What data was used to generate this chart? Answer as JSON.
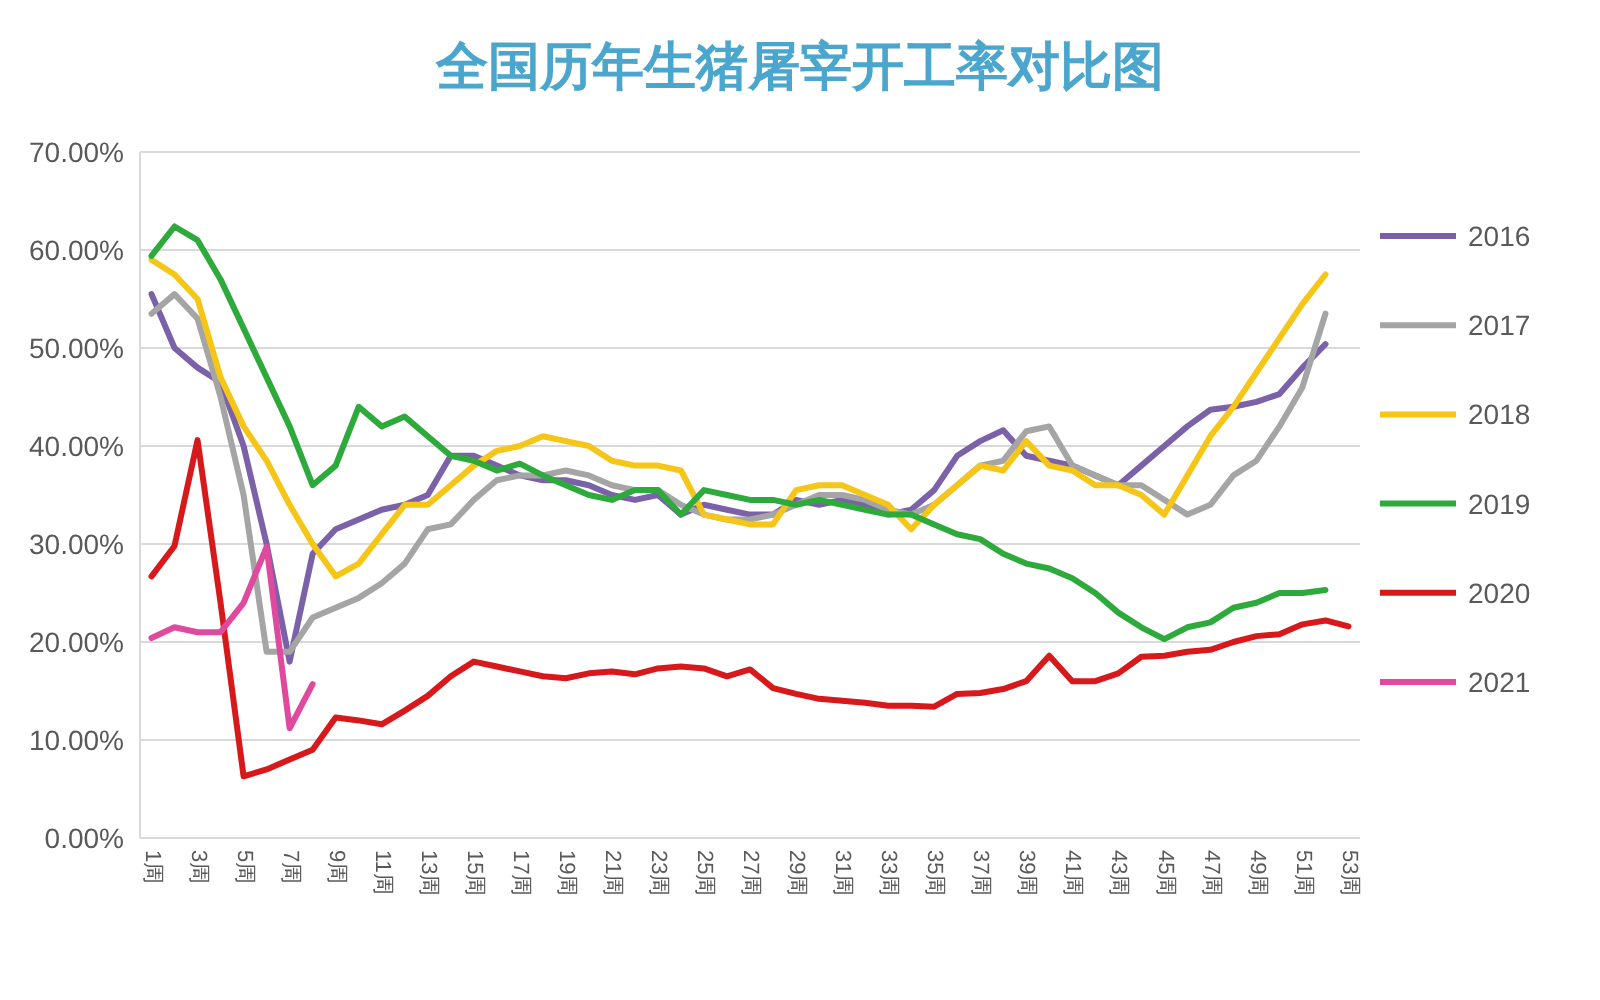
{
  "chart_data": {
    "type": "line",
    "title": "全国历年生猪屠宰开工率对比图",
    "categories": [
      "1周",
      null,
      "3周",
      null,
      "5周",
      null,
      "7周",
      null,
      "9周",
      null,
      "11周",
      null,
      "13周",
      null,
      "15周",
      null,
      "17周",
      null,
      "19周",
      null,
      "21周",
      null,
      "23周",
      null,
      "25周",
      null,
      "27周",
      null,
      "29周",
      null,
      "31周",
      null,
      "33周",
      null,
      "35周",
      null,
      "37周",
      null,
      "39周",
      null,
      "41周",
      null,
      "43周",
      null,
      "45周",
      null,
      "47周",
      null,
      "49周",
      null,
      "51周",
      null,
      "53周"
    ],
    "series": [
      {
        "name": "2016",
        "color": "#7b62a8",
        "values": [
          55.5,
          50,
          48,
          46.5,
          40,
          30,
          18,
          29,
          31.5,
          32.5,
          33.5,
          34,
          35,
          39,
          39,
          38,
          37,
          36.5,
          36.5,
          36,
          35,
          34.5,
          35,
          33,
          34,
          33.5,
          33,
          33,
          34.5,
          34,
          34.5,
          34,
          33,
          33.5,
          35.5,
          39,
          40.5,
          41.6,
          39,
          38.5,
          38,
          37,
          36,
          38,
          40,
          42,
          43.7,
          44,
          44.5,
          45.3,
          48,
          50.4,
          null
        ]
      },
      {
        "name": "2017",
        "color": "#a5a5a5",
        "values": [
          53.5,
          55.5,
          53,
          45,
          35,
          19,
          19,
          22.5,
          23.5,
          24.5,
          26,
          28,
          31.5,
          32,
          34.5,
          36.5,
          37,
          37,
          37.5,
          37,
          36,
          35.5,
          35.5,
          34,
          33,
          32.5,
          32.5,
          33,
          34,
          35,
          35,
          34.5,
          33.5,
          33,
          34,
          36,
          38,
          38.5,
          41.5,
          42,
          38,
          37,
          36,
          36,
          34.5,
          33,
          34,
          37,
          38.5,
          42,
          46,
          53.5,
          null
        ]
      },
      {
        "name": "2018",
        "color": "#f5c518",
        "values": [
          59,
          57.5,
          55,
          47,
          42,
          38.5,
          34,
          30,
          26.7,
          28,
          31,
          34,
          34,
          36,
          38,
          39.5,
          40,
          41,
          40.5,
          40,
          38.5,
          38,
          38,
          37.5,
          33,
          32.5,
          32,
          32,
          35.5,
          36,
          36,
          35,
          34,
          31.5,
          34,
          36,
          38,
          37.5,
          40.5,
          38,
          37.5,
          36,
          36,
          35,
          33,
          37,
          41,
          44,
          47.5,
          51,
          54.5,
          57.5,
          null
        ]
      },
      {
        "name": "2019",
        "color": "#2eaa3c",
        "values": [
          59.4,
          62.4,
          61,
          57,
          52,
          47,
          42,
          36,
          38,
          44,
          42,
          43,
          41,
          39,
          38.5,
          37.5,
          38.2,
          37,
          36,
          35,
          34.5,
          35.5,
          35.5,
          33,
          35.5,
          35,
          34.5,
          34.5,
          34,
          34.5,
          34,
          33.5,
          33,
          33,
          32,
          31,
          30.5,
          29,
          28,
          27.5,
          26.5,
          25,
          23,
          21.5,
          20.3,
          21.5,
          22,
          23.5,
          24,
          25,
          25,
          25.3,
          null
        ]
      },
      {
        "name": "2020",
        "color": "#d7191c",
        "values": [
          26.7,
          29.8,
          40.6,
          24,
          6.3,
          7,
          8,
          9,
          12.3,
          12,
          11.6,
          13,
          14.5,
          16.5,
          18,
          17.5,
          17,
          16.5,
          16.3,
          16.8,
          17,
          16.7,
          17.3,
          17.5,
          17.3,
          16.5,
          17.2,
          15.3,
          14.7,
          14.2,
          14,
          13.8,
          13.5,
          13.5,
          13.4,
          14.7,
          14.8,
          15.2,
          16,
          18.6,
          16,
          16,
          16.8,
          18.5,
          18.6,
          19,
          19.2,
          20,
          20.6,
          20.8,
          21.8,
          22.2,
          21.6
        ]
      },
      {
        "name": "2021",
        "color": "#e04a9e",
        "values": [
          20.4,
          21.5,
          21,
          21,
          24,
          29.7,
          11.2,
          15.7,
          null,
          null,
          null,
          null,
          null,
          null,
          null,
          null,
          null,
          null,
          null,
          null,
          null,
          null,
          null,
          null,
          null,
          null,
          null,
          null,
          null,
          null,
          null,
          null,
          null,
          null,
          null,
          null,
          null,
          null,
          null,
          null,
          null,
          null,
          null,
          null,
          null,
          null,
          null,
          null,
          null,
          null,
          null,
          null,
          null
        ]
      }
    ],
    "ylim": [
      0,
      70
    ],
    "yticks": [
      {
        "value": 0,
        "label": "0.00%"
      },
      {
        "value": 10,
        "label": "10.00%"
      },
      {
        "value": 20,
        "label": "20.00%"
      },
      {
        "value": 30,
        "label": "30.00%"
      },
      {
        "value": 40,
        "label": "40.00%"
      },
      {
        "value": 50,
        "label": "50.00%"
      },
      {
        "value": 60,
        "label": "60.00%"
      },
      {
        "value": 70,
        "label": "70.00%"
      }
    ],
    "grid": "y",
    "legend": "right",
    "marker": "none",
    "line_style": "solid"
  }
}
